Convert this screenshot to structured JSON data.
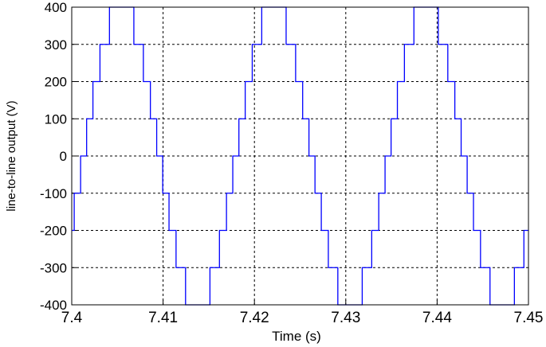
{
  "chart_data": {
    "type": "line",
    "xlabel": "Time (s)",
    "ylabel": "line-to-line output (V)",
    "color": "#0000ff",
    "grid": true,
    "xlim": [
      7.4,
      7.45
    ],
    "xticks": [
      7.4,
      7.41,
      7.42,
      7.43,
      7.44,
      7.45
    ],
    "ylim": [
      -400,
      400
    ],
    "yticks": [
      -400,
      -300,
      -200,
      -100,
      0,
      100,
      200,
      300,
      400
    ],
    "x": [
      7.4,
      7.40027,
      7.40027,
      7.40097,
      7.40097,
      7.40163,
      7.40163,
      7.40232,
      7.40232,
      7.40309,
      7.40309,
      7.40413,
      7.40413,
      7.4068,
      7.4068,
      7.40784,
      7.40784,
      7.40861,
      7.40861,
      7.4093,
      7.4093,
      7.40996,
      7.40996,
      7.41065,
      7.41065,
      7.41142,
      7.41142,
      7.41246,
      7.41246,
      7.41513,
      7.41513,
      7.41617,
      7.41617,
      7.41694,
      7.41694,
      7.41763,
      7.41763,
      7.4183,
      7.4183,
      7.41899,
      7.41899,
      7.41976,
      7.41976,
      7.4208,
      7.4208,
      7.42347,
      7.42347,
      7.42451,
      7.42451,
      7.42528,
      7.42528,
      7.42597,
      7.42597,
      7.42663,
      7.42663,
      7.42732,
      7.42732,
      7.42809,
      7.42809,
      7.42913,
      7.42913,
      7.4318,
      7.4318,
      7.43284,
      7.43284,
      7.43361,
      7.43361,
      7.4343,
      7.4343,
      7.43496,
      7.43496,
      7.43565,
      7.43565,
      7.43642,
      7.43642,
      7.43746,
      7.43746,
      7.44013,
      7.44013,
      7.44117,
      7.44117,
      7.44194,
      7.44194,
      7.44263,
      7.44263,
      7.44329,
      7.44329,
      7.44398,
      7.44398,
      7.44475,
      7.44475,
      7.44579,
      7.44579,
      7.44846,
      7.44846,
      7.4495,
      7.4495,
      7.45
    ],
    "values": [
      -200,
      -200,
      -100,
      -100,
      0,
      0,
      100,
      100,
      200,
      200,
      300,
      300,
      400,
      400,
      300,
      300,
      200,
      200,
      100,
      100,
      0,
      0,
      -100,
      -100,
      -200,
      -200,
      -300,
      -300,
      -400,
      -400,
      -300,
      -300,
      -200,
      -200,
      -100,
      -100,
      0,
      0,
      100,
      100,
      200,
      200,
      300,
      300,
      400,
      400,
      300,
      300,
      200,
      200,
      100,
      100,
      0,
      0,
      -100,
      -100,
      -200,
      -200,
      -300,
      -300,
      -400,
      -400,
      -300,
      -300,
      -200,
      -200,
      -100,
      -100,
      0,
      0,
      100,
      100,
      200,
      200,
      300,
      300,
      400,
      400,
      300,
      300,
      200,
      200,
      100,
      100,
      0,
      0,
      -100,
      -100,
      -200,
      -200,
      -300,
      -300,
      -400,
      -400,
      -300,
      -300,
      -200,
      -200
    ]
  }
}
